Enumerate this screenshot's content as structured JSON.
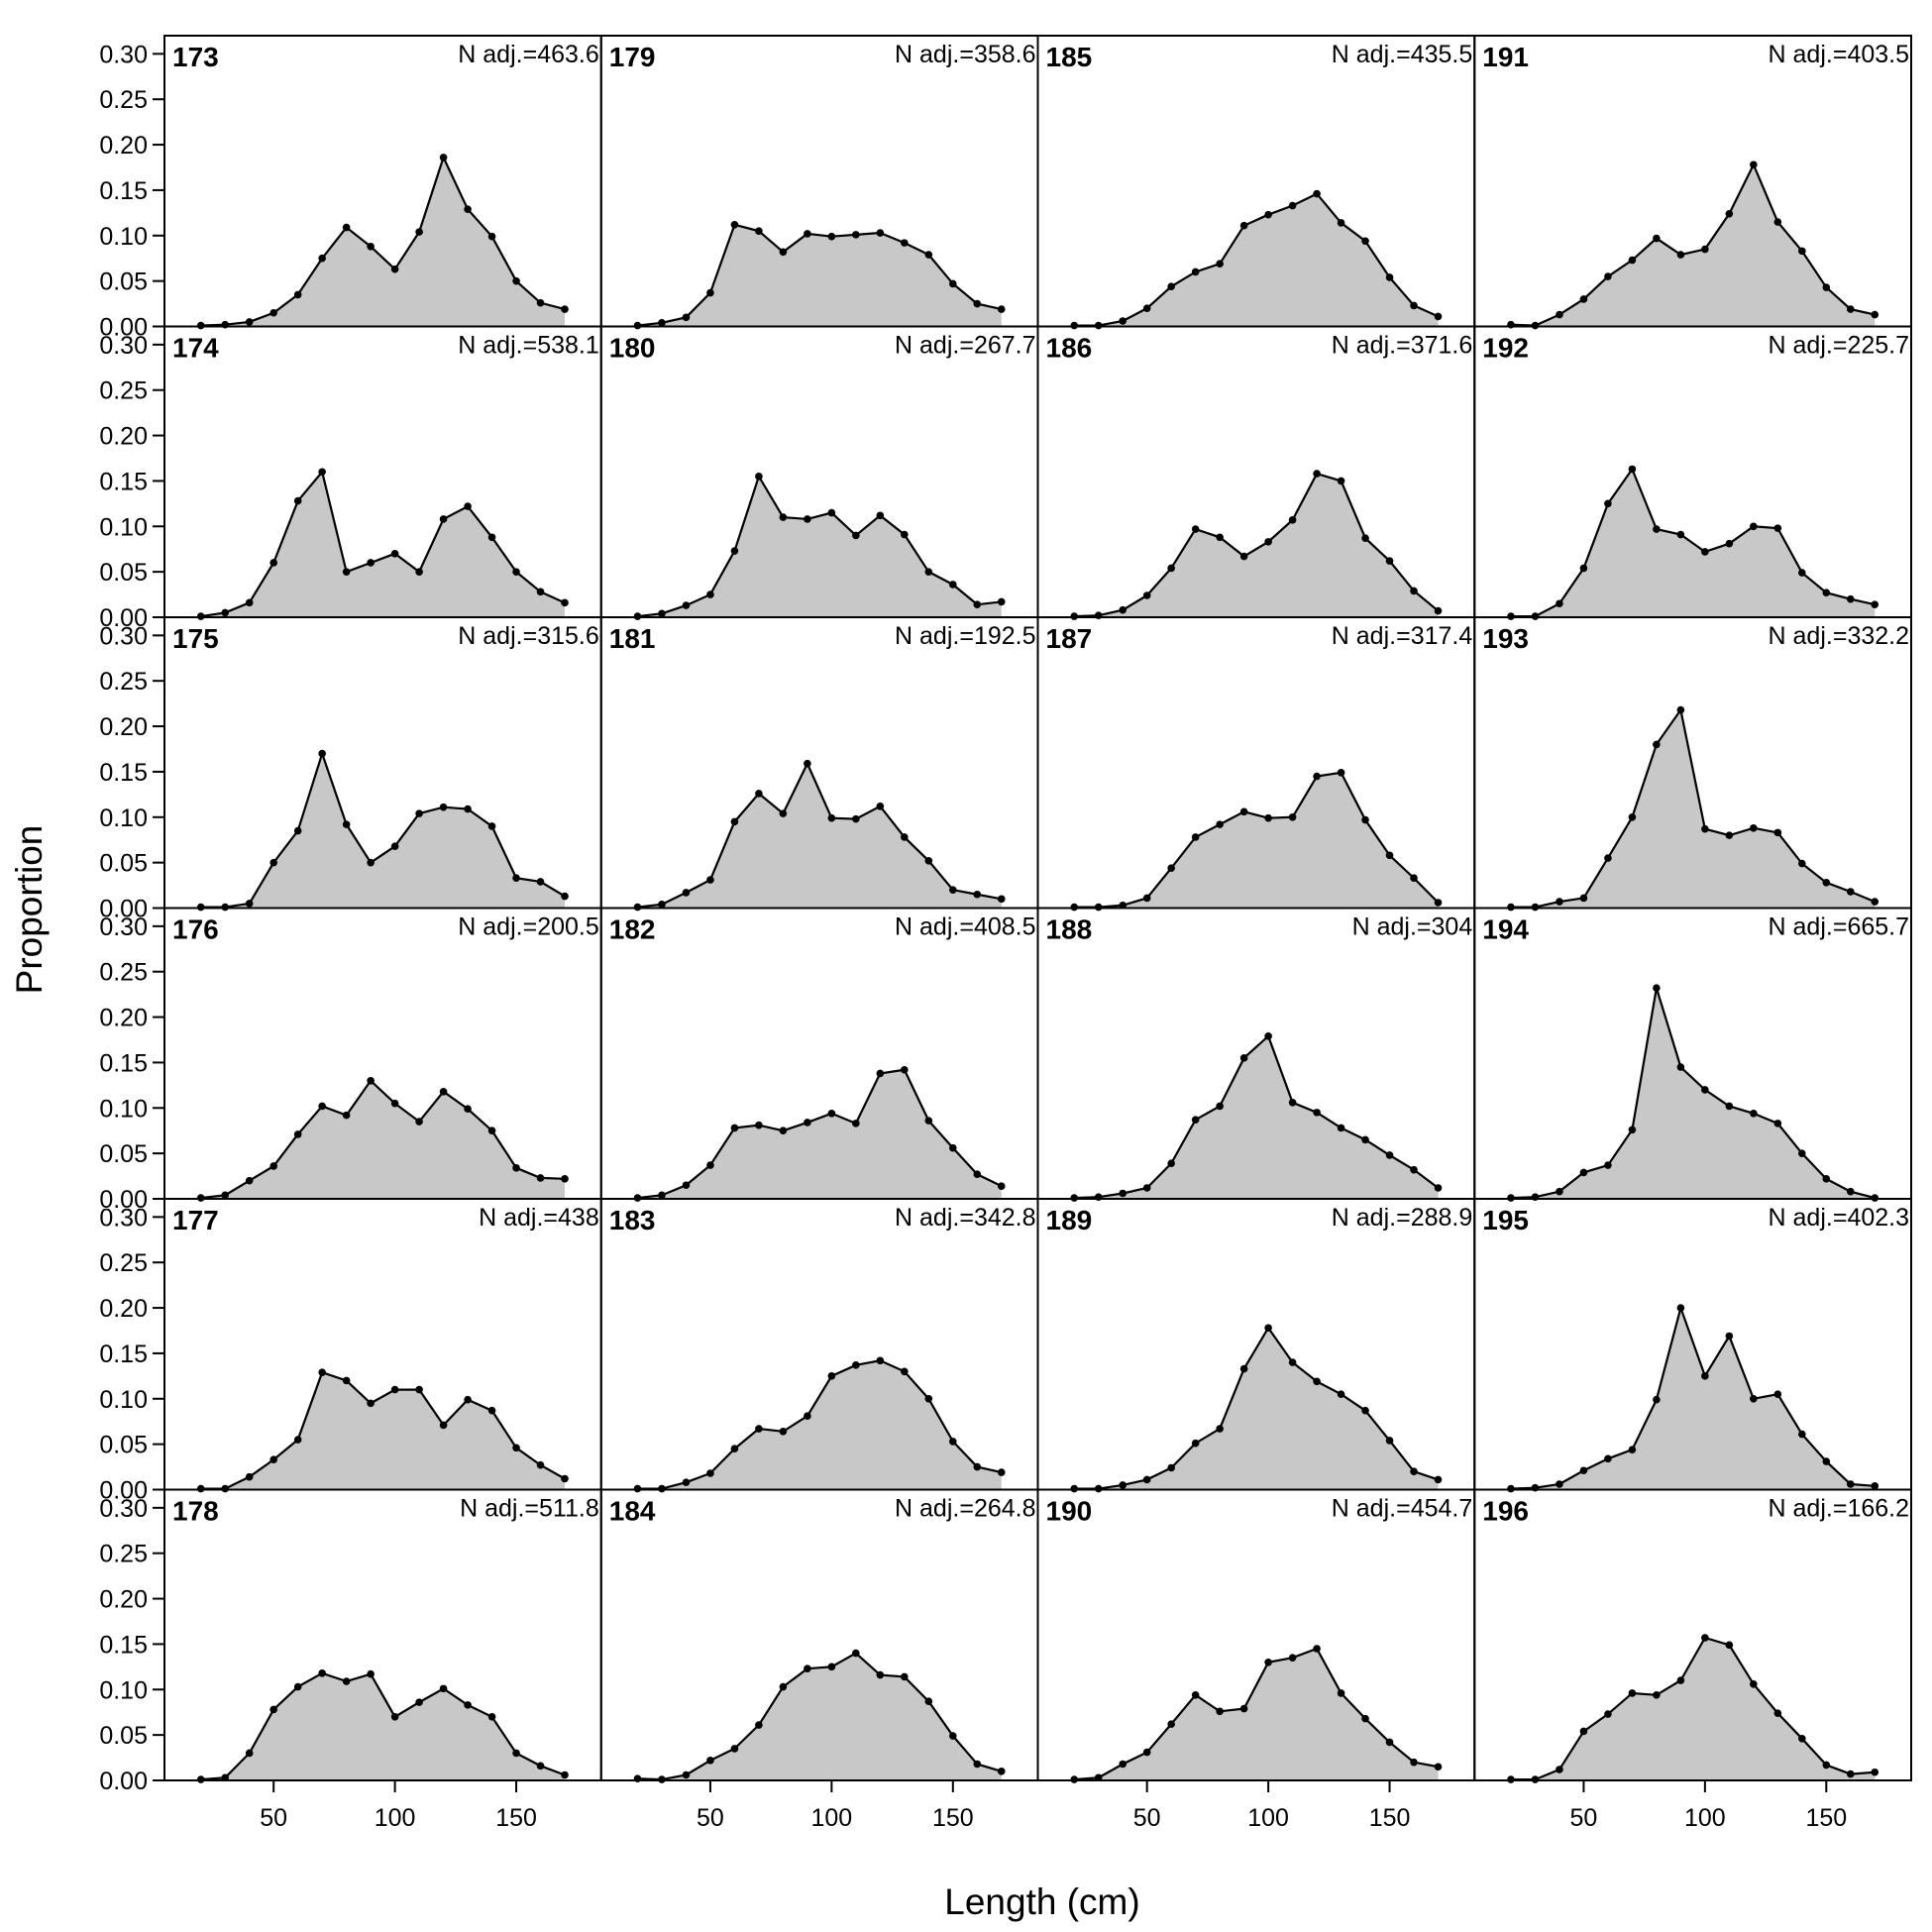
{
  "chart_data": {
    "type": "area",
    "layout": {
      "rows": 6,
      "cols": 4,
      "order": "column-major"
    },
    "xlabel": "Length (cm)",
    "ylabel": "Proportion",
    "xlim": [
      5,
      185
    ],
    "ylim": [
      0,
      0.32
    ],
    "x_ticks": [
      50,
      100,
      150
    ],
    "y_ticks": [
      "0.00",
      "0.05",
      "0.10",
      "0.15",
      "0.20",
      "0.25",
      "0.30"
    ],
    "x": [
      20,
      30,
      40,
      50,
      60,
      70,
      80,
      90,
      100,
      110,
      120,
      130,
      140,
      150,
      160,
      170
    ],
    "colors": {
      "fill": "#c8c8c8",
      "line": "#000000",
      "point": "#000000"
    },
    "panels": [
      {
        "title": "173",
        "n_label": "N adj.=463.6",
        "values": [
          0.001,
          0.002,
          0.005,
          0.015,
          0.035,
          0.075,
          0.109,
          0.088,
          0.063,
          0.104,
          0.186,
          0.129,
          0.099,
          0.05,
          0.026,
          0.019
        ]
      },
      {
        "title": "174",
        "n_label": "N adj.=538.1",
        "values": [
          0.001,
          0.005,
          0.016,
          0.06,
          0.128,
          0.16,
          0.05,
          0.06,
          0.07,
          0.05,
          0.108,
          0.122,
          0.088,
          0.05,
          0.028,
          0.016
        ]
      },
      {
        "title": "175",
        "n_label": "N adj.=315.6",
        "values": [
          0.001,
          0.001,
          0.005,
          0.05,
          0.085,
          0.17,
          0.092,
          0.05,
          0.068,
          0.104,
          0.111,
          0.109,
          0.09,
          0.033,
          0.029,
          0.013
        ]
      },
      {
        "title": "176",
        "n_label": "N adj.=200.5",
        "values": [
          0.001,
          0.004,
          0.02,
          0.036,
          0.071,
          0.102,
          0.092,
          0.13,
          0.105,
          0.085,
          0.118,
          0.099,
          0.075,
          0.034,
          0.023,
          0.022
        ]
      },
      {
        "title": "177",
        "n_label": "N adj.=438",
        "values": [
          0.001,
          0.001,
          0.014,
          0.033,
          0.055,
          0.129,
          0.12,
          0.095,
          0.11,
          0.11,
          0.071,
          0.099,
          0.087,
          0.046,
          0.027,
          0.012
        ]
      },
      {
        "title": "178",
        "n_label": "N adj.=511.8",
        "values": [
          0.001,
          0.003,
          0.03,
          0.078,
          0.103,
          0.118,
          0.109,
          0.117,
          0.07,
          0.086,
          0.101,
          0.083,
          0.07,
          0.03,
          0.016,
          0.006
        ]
      },
      {
        "title": "179",
        "n_label": "N adj.=358.6",
        "values": [
          0.001,
          0.004,
          0.01,
          0.037,
          0.112,
          0.105,
          0.082,
          0.102,
          0.099,
          0.101,
          0.103,
          0.092,
          0.079,
          0.047,
          0.025,
          0.019
        ]
      },
      {
        "title": "180",
        "n_label": "N adj.=267.7",
        "values": [
          0.001,
          0.004,
          0.013,
          0.025,
          0.073,
          0.155,
          0.11,
          0.108,
          0.115,
          0.09,
          0.112,
          0.091,
          0.05,
          0.036,
          0.014,
          0.017
        ]
      },
      {
        "title": "181",
        "n_label": "N adj.=192.5",
        "values": [
          0.001,
          0.004,
          0.017,
          0.031,
          0.095,
          0.126,
          0.104,
          0.159,
          0.099,
          0.098,
          0.112,
          0.078,
          0.052,
          0.02,
          0.015,
          0.01
        ]
      },
      {
        "title": "182",
        "n_label": "N adj.=408.5",
        "values": [
          0.001,
          0.004,
          0.015,
          0.037,
          0.078,
          0.081,
          0.075,
          0.084,
          0.094,
          0.083,
          0.138,
          0.142,
          0.086,
          0.056,
          0.027,
          0.014
        ]
      },
      {
        "title": "183",
        "n_label": "N adj.=342.8",
        "values": [
          0.001,
          0.001,
          0.008,
          0.018,
          0.045,
          0.067,
          0.064,
          0.081,
          0.125,
          0.137,
          0.142,
          0.13,
          0.1,
          0.053,
          0.025,
          0.019
        ]
      },
      {
        "title": "184",
        "n_label": "N adj.=264.8",
        "values": [
          0.002,
          0.001,
          0.006,
          0.022,
          0.035,
          0.061,
          0.103,
          0.123,
          0.125,
          0.14,
          0.116,
          0.114,
          0.087,
          0.049,
          0.018,
          0.01
        ]
      },
      {
        "title": "185",
        "n_label": "N adj.=435.5",
        "values": [
          0.001,
          0.001,
          0.006,
          0.02,
          0.044,
          0.06,
          0.069,
          0.111,
          0.123,
          0.133,
          0.146,
          0.114,
          0.094,
          0.054,
          0.023,
          0.011
        ]
      },
      {
        "title": "186",
        "n_label": "N adj.=371.6",
        "values": [
          0.001,
          0.002,
          0.008,
          0.024,
          0.054,
          0.097,
          0.088,
          0.067,
          0.083,
          0.107,
          0.158,
          0.15,
          0.087,
          0.062,
          0.029,
          0.007
        ]
      },
      {
        "title": "187",
        "n_label": "N adj.=317.4",
        "values": [
          0.001,
          0.001,
          0.003,
          0.011,
          0.044,
          0.078,
          0.092,
          0.106,
          0.099,
          0.1,
          0.145,
          0.149,
          0.097,
          0.058,
          0.033,
          0.006
        ]
      },
      {
        "title": "188",
        "n_label": "N adj.=304",
        "values": [
          0.001,
          0.002,
          0.006,
          0.012,
          0.039,
          0.087,
          0.102,
          0.155,
          0.179,
          0.106,
          0.095,
          0.078,
          0.065,
          0.048,
          0.032,
          0.012
        ]
      },
      {
        "title": "189",
        "n_label": "N adj.=288.9",
        "values": [
          0.001,
          0.001,
          0.005,
          0.011,
          0.024,
          0.051,
          0.067,
          0.133,
          0.178,
          0.14,
          0.119,
          0.105,
          0.087,
          0.054,
          0.02,
          0.011
        ]
      },
      {
        "title": "190",
        "n_label": "N adj.=454.7",
        "values": [
          0.001,
          0.003,
          0.018,
          0.031,
          0.062,
          0.094,
          0.076,
          0.079,
          0.13,
          0.135,
          0.145,
          0.096,
          0.068,
          0.042,
          0.02,
          0.015
        ]
      },
      {
        "title": "191",
        "n_label": "N adj.=403.5",
        "values": [
          0.002,
          0.001,
          0.013,
          0.03,
          0.055,
          0.073,
          0.097,
          0.079,
          0.085,
          0.124,
          0.178,
          0.115,
          0.083,
          0.043,
          0.019,
          0.013
        ]
      },
      {
        "title": "192",
        "n_label": "N adj.=225.7",
        "values": [
          0.001,
          0.001,
          0.015,
          0.054,
          0.125,
          0.163,
          0.097,
          0.091,
          0.072,
          0.081,
          0.1,
          0.098,
          0.049,
          0.027,
          0.02,
          0.014
        ]
      },
      {
        "title": "193",
        "n_label": "N adj.=332.2",
        "values": [
          0.001,
          0.001,
          0.007,
          0.011,
          0.055,
          0.1,
          0.18,
          0.218,
          0.087,
          0.08,
          0.088,
          0.083,
          0.049,
          0.028,
          0.018,
          0.007
        ]
      },
      {
        "title": "194",
        "n_label": "N adj.=665.7",
        "values": [
          0.001,
          0.002,
          0.008,
          0.029,
          0.037,
          0.076,
          0.232,
          0.145,
          0.12,
          0.102,
          0.094,
          0.083,
          0.05,
          0.022,
          0.008,
          0.001
        ]
      },
      {
        "title": "195",
        "n_label": "N adj.=402.3",
        "values": [
          0.001,
          0.002,
          0.006,
          0.021,
          0.034,
          0.044,
          0.099,
          0.2,
          0.125,
          0.169,
          0.1,
          0.105,
          0.061,
          0.031,
          0.006,
          0.004
        ]
      },
      {
        "title": "196",
        "n_label": "N adj.=166.2",
        "values": [
          0.001,
          0.001,
          0.012,
          0.054,
          0.073,
          0.096,
          0.094,
          0.11,
          0.157,
          0.149,
          0.106,
          0.074,
          0.046,
          0.017,
          0.007,
          0.009
        ]
      }
    ]
  }
}
